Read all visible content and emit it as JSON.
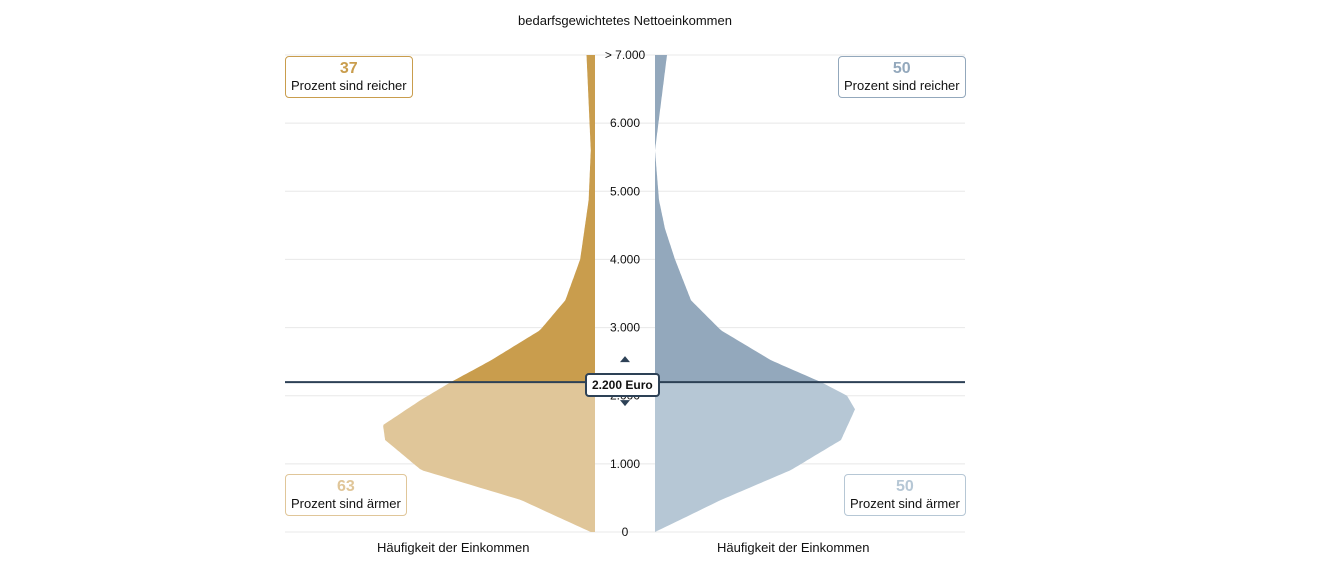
{
  "title": "bedarfsgewichtetes Nettoeinkommen",
  "marker": {
    "value": 2200,
    "label": "2.200 Euro"
  },
  "left": {
    "richer_value": "37",
    "richer_text": "Prozent sind reicher",
    "poorer_value": "63",
    "poorer_text": "Prozent sind ärmer",
    "xlabel": "Häufigkeit der Einkommen"
  },
  "right": {
    "richer_value": "50",
    "richer_text": "Prozent sind reicher",
    "poorer_value": "50",
    "poorer_text": "Prozent sind ärmer",
    "xlabel": "Häufigkeit der Einkommen"
  },
  "chart_data": {
    "type": "violin",
    "title": "bedarfsgewichtetes Nettoeinkommen",
    "ylim": [
      0,
      7000
    ],
    "yticks": [
      {
        "v": 0,
        "l": "0"
      },
      {
        "v": 1000,
        "l": "1.000"
      },
      {
        "v": 2000,
        "l": "2.000"
      },
      {
        "v": 3000,
        "l": "3.000"
      },
      {
        "v": 4000,
        "l": "4.000"
      },
      {
        "v": 5000,
        "l": "5.000"
      },
      {
        "v": 6000,
        "l": "6.000"
      },
      {
        "v": 7000,
        "l": "> 7.000"
      }
    ],
    "series": [
      {
        "name": "left",
        "color_upper": "#c99d4d",
        "color_lower": "#e0c699",
        "income": [
          0,
          470,
          910,
          1350,
          1570,
          1940,
          2200,
          2520,
          2960,
          3400,
          4000,
          4870,
          5600,
          7000
        ],
        "density": [
          0.02,
          0.35,
          0.82,
          0.99,
          1.0,
          0.82,
          0.68,
          0.49,
          0.26,
          0.14,
          0.07,
          0.03,
          0.02,
          0.04
        ]
      },
      {
        "name": "right",
        "color_upper": "#93a8bc",
        "color_lower": "#b6c7d5",
        "income": [
          0,
          470,
          910,
          1350,
          1800,
          2000,
          2200,
          2520,
          2960,
          3400,
          4000,
          4450,
          4870,
          5600,
          7000
        ],
        "density": [
          0,
          0.33,
          0.68,
          0.93,
          1.0,
          0.96,
          0.83,
          0.58,
          0.33,
          0.18,
          0.1,
          0.05,
          0.02,
          0,
          0.06
        ]
      }
    ]
  }
}
